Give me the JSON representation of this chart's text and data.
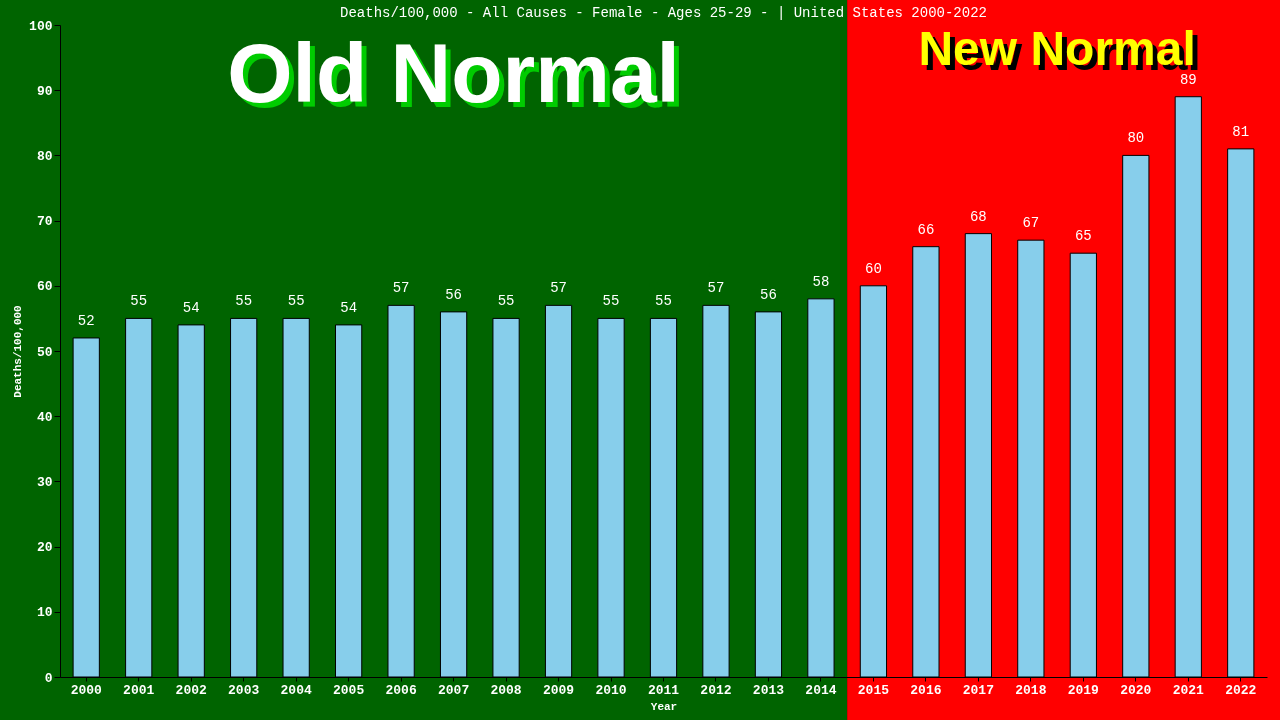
{
  "chart_data": {
    "type": "bar",
    "title": "Deaths/100,000 - All Causes - Female - Ages 25-29 -  | United States 2000-2022",
    "xlabel": "Year",
    "ylabel": "Deaths/100,000",
    "categories": [
      "2000",
      "2001",
      "2002",
      "2003",
      "2004",
      "2005",
      "2006",
      "2007",
      "2008",
      "2009",
      "2010",
      "2011",
      "2012",
      "2013",
      "2014",
      "2015",
      "2016",
      "2017",
      "2018",
      "2019",
      "2020",
      "2021",
      "2022"
    ],
    "values": [
      52,
      55,
      54,
      55,
      55,
      54,
      57,
      56,
      55,
      57,
      55,
      55,
      57,
      56,
      58,
      60,
      66,
      68,
      67,
      65,
      80,
      89,
      81
    ],
    "color": "#87ceeb",
    "ylim": [
      0,
      100
    ],
    "yticks": [
      0,
      10,
      20,
      30,
      40,
      50,
      60,
      70,
      80,
      90,
      100
    ],
    "grid": false,
    "data_labels": true,
    "bands": [
      {
        "axis": "x",
        "from": "2000",
        "to": "2014",
        "label": "Old Normal",
        "color": "#006400"
      },
      {
        "axis": "x",
        "from": "2015",
        "to": "2022",
        "label": "New Normal",
        "color": "#ff0000"
      }
    ]
  }
}
